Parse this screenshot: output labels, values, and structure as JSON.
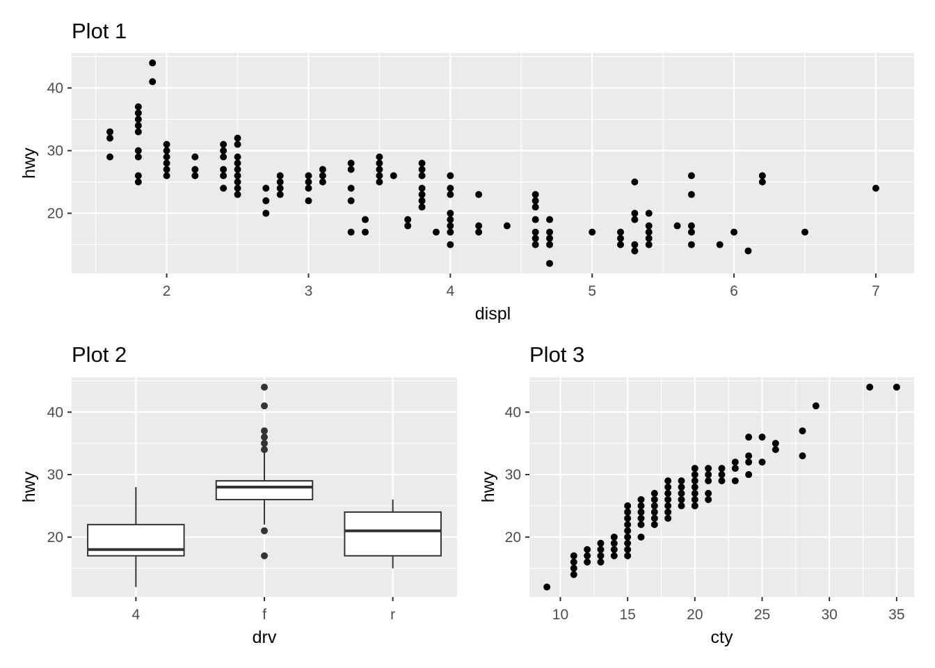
{
  "chart_data": [
    {
      "type": "scatter",
      "title": "Plot 1",
      "xlabel": "displ",
      "ylabel": "hwy",
      "xlim": [
        1.33,
        7.27
      ],
      "ylim": [
        10.4,
        45.6
      ],
      "xticks": [
        2,
        3,
        4,
        5,
        6,
        7
      ],
      "yticks": [
        20,
        30,
        40
      ],
      "grid": true,
      "points": [
        [
          1.6,
          33
        ],
        [
          1.6,
          32
        ],
        [
          1.6,
          29
        ],
        [
          1.8,
          37
        ],
        [
          1.8,
          36
        ],
        [
          1.8,
          35
        ],
        [
          1.8,
          34
        ],
        [
          1.8,
          33
        ],
        [
          1.8,
          30
        ],
        [
          1.8,
          29
        ],
        [
          1.8,
          26
        ],
        [
          1.8,
          25
        ],
        [
          1.9,
          44
        ],
        [
          1.9,
          41
        ],
        [
          2.0,
          31
        ],
        [
          2.0,
          30
        ],
        [
          2.0,
          29
        ],
        [
          2.0,
          28
        ],
        [
          2.0,
          27
        ],
        [
          2.0,
          26
        ],
        [
          2.2,
          29
        ],
        [
          2.2,
          27
        ],
        [
          2.2,
          26
        ],
        [
          2.4,
          31
        ],
        [
          2.4,
          30
        ],
        [
          2.4,
          29
        ],
        [
          2.4,
          27
        ],
        [
          2.4,
          26
        ],
        [
          2.4,
          24
        ],
        [
          2.5,
          32
        ],
        [
          2.5,
          31
        ],
        [
          2.5,
          29
        ],
        [
          2.5,
          28
        ],
        [
          2.5,
          27
        ],
        [
          2.5,
          26
        ],
        [
          2.5,
          25
        ],
        [
          2.5,
          24
        ],
        [
          2.5,
          23
        ],
        [
          2.7,
          24
        ],
        [
          2.7,
          22
        ],
        [
          2.7,
          20
        ],
        [
          2.8,
          26
        ],
        [
          2.8,
          25
        ],
        [
          2.8,
          24
        ],
        [
          2.8,
          23
        ],
        [
          3.0,
          26
        ],
        [
          3.0,
          25
        ],
        [
          3.0,
          24
        ],
        [
          3.0,
          22
        ],
        [
          3.1,
          27
        ],
        [
          3.1,
          26
        ],
        [
          3.1,
          25
        ],
        [
          3.3,
          28
        ],
        [
          3.3,
          27
        ],
        [
          3.3,
          24
        ],
        [
          3.3,
          22
        ],
        [
          3.3,
          17
        ],
        [
          3.4,
          19
        ],
        [
          3.4,
          17
        ],
        [
          3.5,
          29
        ],
        [
          3.5,
          28
        ],
        [
          3.5,
          27
        ],
        [
          3.5,
          26
        ],
        [
          3.5,
          25
        ],
        [
          3.6,
          26
        ],
        [
          3.7,
          19
        ],
        [
          3.7,
          18
        ],
        [
          3.8,
          28
        ],
        [
          3.8,
          27
        ],
        [
          3.8,
          26
        ],
        [
          3.8,
          24
        ],
        [
          3.8,
          23
        ],
        [
          3.8,
          22
        ],
        [
          3.8,
          21
        ],
        [
          3.9,
          17
        ],
        [
          4.0,
          26
        ],
        [
          4.0,
          24
        ],
        [
          4.0,
          23
        ],
        [
          4.0,
          20
        ],
        [
          4.0,
          19
        ],
        [
          4.0,
          18
        ],
        [
          4.0,
          17
        ],
        [
          4.0,
          15
        ],
        [
          4.2,
          23
        ],
        [
          4.2,
          18
        ],
        [
          4.2,
          17
        ],
        [
          4.4,
          18
        ],
        [
          4.6,
          23
        ],
        [
          4.6,
          22
        ],
        [
          4.6,
          21
        ],
        [
          4.6,
          19
        ],
        [
          4.6,
          17
        ],
        [
          4.6,
          16
        ],
        [
          4.6,
          15
        ],
        [
          4.7,
          19
        ],
        [
          4.7,
          17
        ],
        [
          4.7,
          16
        ],
        [
          4.7,
          15
        ],
        [
          4.7,
          12
        ],
        [
          5.0,
          17
        ],
        [
          5.2,
          17
        ],
        [
          5.2,
          16
        ],
        [
          5.2,
          15
        ],
        [
          5.3,
          25
        ],
        [
          5.3,
          20
        ],
        [
          5.3,
          19
        ],
        [
          5.3,
          15
        ],
        [
          5.3,
          14
        ],
        [
          5.4,
          20
        ],
        [
          5.4,
          18
        ],
        [
          5.4,
          17
        ],
        [
          5.4,
          16
        ],
        [
          5.4,
          15
        ],
        [
          5.6,
          18
        ],
        [
          5.7,
          26
        ],
        [
          5.7,
          23
        ],
        [
          5.7,
          18
        ],
        [
          5.7,
          17
        ],
        [
          5.7,
          15
        ],
        [
          5.9,
          15
        ],
        [
          6.0,
          17
        ],
        [
          6.1,
          14
        ],
        [
          6.2,
          26
        ],
        [
          6.2,
          25
        ],
        [
          6.5,
          17
        ],
        [
          7.0,
          24
        ]
      ]
    },
    {
      "type": "box",
      "title": "Plot 2",
      "xlabel": "drv",
      "ylabel": "hwy",
      "categories": [
        "4",
        "f",
        "r"
      ],
      "ylim": [
        10.4,
        45.6
      ],
      "yticks": [
        20,
        30,
        40
      ],
      "grid": true,
      "boxes": [
        {
          "category": "4",
          "lower_whisker": 12,
          "q1": 17,
          "median": 18,
          "q3": 22,
          "upper_whisker": 28,
          "outliers": []
        },
        {
          "category": "f",
          "lower_whisker": 22,
          "q1": 26,
          "median": 28,
          "q3": 29,
          "upper_whisker": 34,
          "outliers": [
            44,
            41,
            37,
            36,
            35,
            34,
            21,
            17
          ]
        },
        {
          "category": "r",
          "lower_whisker": 15,
          "q1": 17,
          "median": 21,
          "q3": 24,
          "upper_whisker": 26,
          "outliers": []
        }
      ]
    },
    {
      "type": "scatter",
      "title": "Plot 3",
      "xlabel": "cty",
      "ylabel": "hwy",
      "xlim": [
        7.7,
        36.3
      ],
      "ylim": [
        10.4,
        45.6
      ],
      "xticks": [
        10,
        15,
        20,
        25,
        30,
        35
      ],
      "yticks": [
        20,
        30,
        40
      ],
      "grid": true,
      "points": [
        [
          9,
          12
        ],
        [
          11,
          17
        ],
        [
          11,
          16
        ],
        [
          11,
          15
        ],
        [
          11,
          14
        ],
        [
          12,
          18
        ],
        [
          12,
          17
        ],
        [
          12,
          16
        ],
        [
          13,
          19
        ],
        [
          13,
          18
        ],
        [
          13,
          17
        ],
        [
          13,
          16
        ],
        [
          14,
          20
        ],
        [
          14,
          19
        ],
        [
          14,
          18
        ],
        [
          14,
          17
        ],
        [
          15,
          25
        ],
        [
          15,
          24
        ],
        [
          15,
          23
        ],
        [
          15,
          22
        ],
        [
          15,
          21
        ],
        [
          15,
          20
        ],
        [
          15,
          19
        ],
        [
          15,
          18
        ],
        [
          15,
          17
        ],
        [
          16,
          26
        ],
        [
          16,
          25
        ],
        [
          16,
          24
        ],
        [
          16,
          23
        ],
        [
          16,
          22
        ],
        [
          16,
          20
        ],
        [
          17,
          27
        ],
        [
          17,
          26
        ],
        [
          17,
          25
        ],
        [
          17,
          24
        ],
        [
          17,
          23
        ],
        [
          17,
          22
        ],
        [
          18,
          29
        ],
        [
          18,
          28
        ],
        [
          18,
          27
        ],
        [
          18,
          26
        ],
        [
          18,
          25
        ],
        [
          18,
          24
        ],
        [
          18,
          23
        ],
        [
          19,
          29
        ],
        [
          19,
          28
        ],
        [
          19,
          27
        ],
        [
          19,
          26
        ],
        [
          19,
          25
        ],
        [
          20,
          31
        ],
        [
          20,
          30
        ],
        [
          20,
          29
        ],
        [
          20,
          28
        ],
        [
          20,
          27
        ],
        [
          20,
          26
        ],
        [
          20,
          25
        ],
        [
          21,
          31
        ],
        [
          21,
          30
        ],
        [
          21,
          29
        ],
        [
          21,
          27
        ],
        [
          21,
          26
        ],
        [
          22,
          31
        ],
        [
          22,
          30
        ],
        [
          22,
          29
        ],
        [
          23,
          32
        ],
        [
          23,
          31
        ],
        [
          23,
          29
        ],
        [
          24,
          36
        ],
        [
          24,
          33
        ],
        [
          24,
          32
        ],
        [
          24,
          30
        ],
        [
          25,
          36
        ],
        [
          25,
          32
        ],
        [
          26,
          35
        ],
        [
          26,
          34
        ],
        [
          28,
          37
        ],
        [
          28,
          33
        ],
        [
          29,
          41
        ],
        [
          33,
          44
        ],
        [
          35,
          44
        ]
      ]
    }
  ]
}
